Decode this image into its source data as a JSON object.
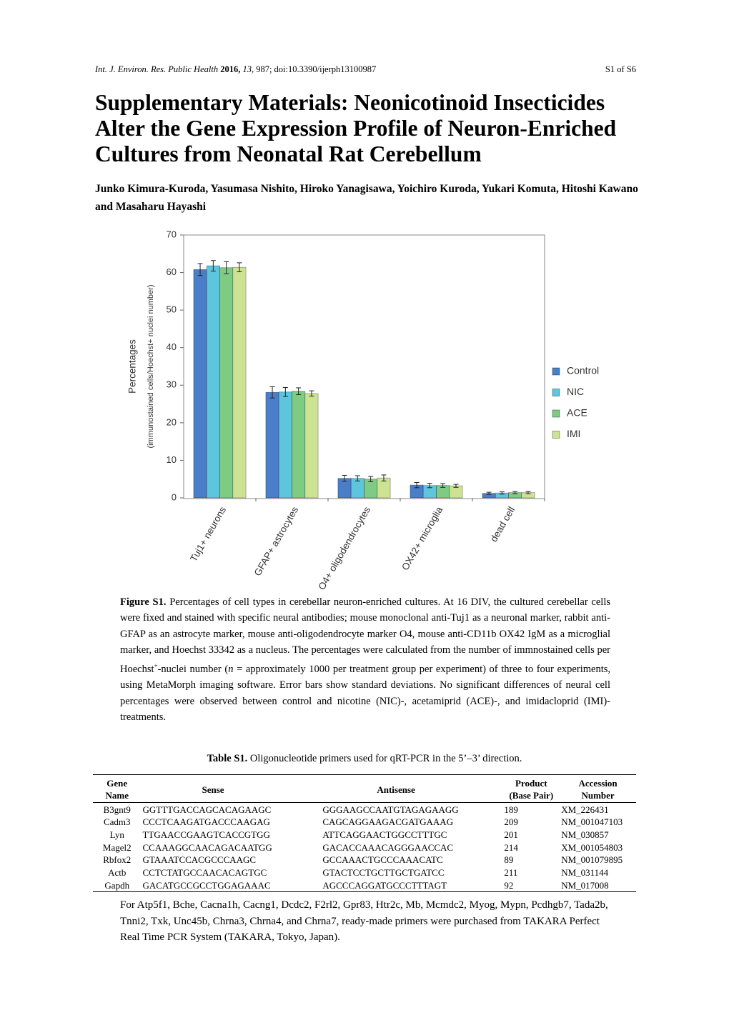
{
  "header": {
    "journal": "Int. J. Environ. Res. Public Health",
    "year": "2016,",
    "volume": "13,",
    "rest": "987; doi:10.3390/ijerph13100987",
    "page": "S1 of S6"
  },
  "title_lines": [
    "Supplementary Materials: Neonicotinoid Insecticides",
    "Alter the Gene Expression Profile of Neuron-Enriched",
    "Cultures from Neonatal Rat Cerebellum"
  ],
  "authors": "Junko Kimura-Kuroda, Yasumasa Nishito, Hiroko Yanagisawa, Yoichiro Kuroda, Yukari Komuta, Hitoshi Kawano and Masaharu Hayashi",
  "chart_data": {
    "type": "bar",
    "ylabel": "Percentages",
    "ylabel_sub": "(immunostained cells/Hoechst+ nuclei number)",
    "categories": [
      "Tuj1+ neurons",
      "GFAP+ astrocytes",
      "O4+ oligodendrocytes",
      "OX42+ microglia",
      "dead cell"
    ],
    "series": [
      {
        "name": "Control",
        "color": "#4a7ec8",
        "values": [
          60.8,
          28.1,
          5.2,
          3.4,
          1.2
        ],
        "errors": [
          1.6,
          1.5,
          0.8,
          0.7,
          0.3
        ]
      },
      {
        "name": "NIC",
        "color": "#5ec6dc",
        "values": [
          61.8,
          28.2,
          5.2,
          3.3,
          1.3
        ],
        "errors": [
          1.4,
          1.2,
          0.7,
          0.6,
          0.3
        ]
      },
      {
        "name": "ACE",
        "color": "#7ecb83",
        "values": [
          61.3,
          28.4,
          5.0,
          3.3,
          1.4
        ],
        "errors": [
          1.6,
          0.9,
          0.7,
          0.5,
          0.3
        ]
      },
      {
        "name": "IMI",
        "color": "#cde393",
        "values": [
          61.4,
          27.8,
          5.3,
          3.2,
          1.4
        ],
        "errors": [
          1.2,
          0.7,
          0.8,
          0.4,
          0.3
        ]
      }
    ],
    "ylim": [
      0,
      70
    ],
    "yticks": [
      0,
      10,
      20,
      30,
      40,
      50,
      60,
      70
    ],
    "grid": false,
    "legend": "right"
  },
  "caption": {
    "label": "Figure S1.",
    "text_1": "Percentages of cell types in cerebellar neuron-enriched cultures. At 16 DIV, the cultured cerebellar cells were fixed and stained with specific neural antibodies; mouse monoclonal anti-Tuj1 as a neuronal marker, rabbit anti-GFAP as an astrocyte marker, mouse anti-oligodendrocyte marker O4, mouse anti-CD11b OX42 IgM as a microglial marker, and Hoechst 33342 as a nucleus. The percentages were calculated from the number of immnostained cells per Hoechst",
    "sup": "+",
    "text_2": "-nuclei number (",
    "italic": "n",
    "text_3": " = approximately 1000 per treatment group per experiment) of three to four experiments, using MetaMorph imaging software. Error bars show standard deviations. No significant differences of neural cell percentages were observed between control and nicotine (NIC)-, acetamiprid (ACE)-, and imidacloprid (IMI)-treatments."
  },
  "table": {
    "label": "Table S1.",
    "title": "Oligonucleotide primers used for qRT-PCR in the 5’–3’ direction.",
    "header": [
      [
        "Gene",
        "Name"
      ],
      [
        "Sense"
      ],
      [
        "Antisense"
      ],
      [
        "Product",
        "(Base Pair)"
      ],
      [
        "Accession",
        "Number"
      ]
    ],
    "rows": [
      [
        "B3gnt9",
        "GGTTTGACCAGCACAGAAGC",
        "GGGAAGCCAATGTAGAGAAGG",
        189,
        "XM_226431"
      ],
      [
        "Cadm3",
        "CCCTCAAGATGACCCAAGAG",
        "CAGCAGGAAGACGATGAAAG",
        209,
        "NM_001047103"
      ],
      [
        "Lyn",
        "TTGAACCGAAGTCACCGTGG",
        "ATTCAGGAACTGGCCTTTGC",
        201,
        "NM_030857"
      ],
      [
        "Magel2",
        "CCAAAGGCAACAGACAATGG",
        "GACACCAAACAGGGAACCAC",
        214,
        "XM_001054803"
      ],
      [
        "Rbfox2",
        "GTAAATCCACGCCCAAGC",
        "GCCAAACTGCCCAAACATC",
        89,
        "NM_001079895"
      ],
      [
        "Actb",
        "CCTCTATGCCAACACAGTGC",
        "GTACTCCTGCTTGCTGATCC",
        211,
        "NM_031144"
      ],
      [
        "Gapdh",
        "GACATGCCGCCTGGAGAAAC",
        "AGCCCAGGATGCCCTTTAGT",
        92,
        "NM_017008"
      ]
    ],
    "footnote": "For Atp5f1, Bche, Cacna1h, Cacng1, Dcdc2, F2rl2, Gpr83, Htr2c, Mb, Mcmdc2, Myog, Mypn, Pcdhgb7, Tada2b, Tnni2, Txk, Unc45b, Chrna3, Chrna4, and Chrna7, ready-made primers were purchased from TAKARA Perfect Real Time PCR System (TAKARA, Tokyo, Japan)."
  }
}
